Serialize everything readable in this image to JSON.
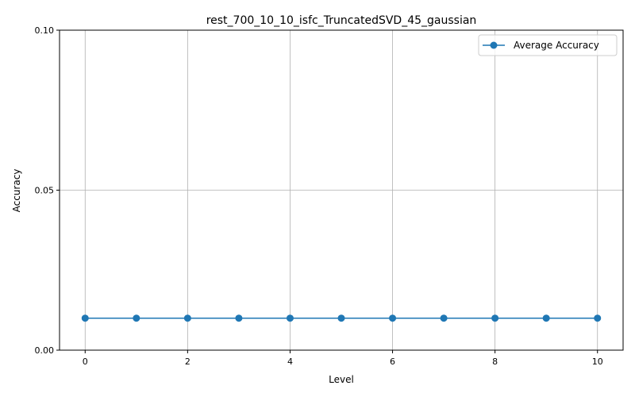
{
  "chart_data": {
    "type": "line",
    "title": "rest_700_10_10_isfc_TruncatedSVD_45_gaussian",
    "xlabel": "Level",
    "ylabel": "Accuracy",
    "xlim": [
      -0.5,
      10.5
    ],
    "ylim": [
      0.0,
      0.1
    ],
    "xticks": [
      0,
      2,
      4,
      6,
      8,
      10
    ],
    "xtick_labels": [
      "0",
      "2",
      "4",
      "6",
      "8",
      "10"
    ],
    "yticks": [
      0.0,
      0.05,
      0.1
    ],
    "ytick_labels": [
      "0.00",
      "0.05",
      "0.10"
    ],
    "grid": true,
    "legend_position": "top-right",
    "series": [
      {
        "name": "Average Accuracy",
        "color": "#1f77b4",
        "marker": "circle",
        "x": [
          0,
          1,
          2,
          3,
          4,
          5,
          6,
          7,
          8,
          9,
          10
        ],
        "y": [
          0.01,
          0.01,
          0.01,
          0.01,
          0.01,
          0.01,
          0.01,
          0.01,
          0.01,
          0.01,
          0.01
        ]
      }
    ]
  }
}
